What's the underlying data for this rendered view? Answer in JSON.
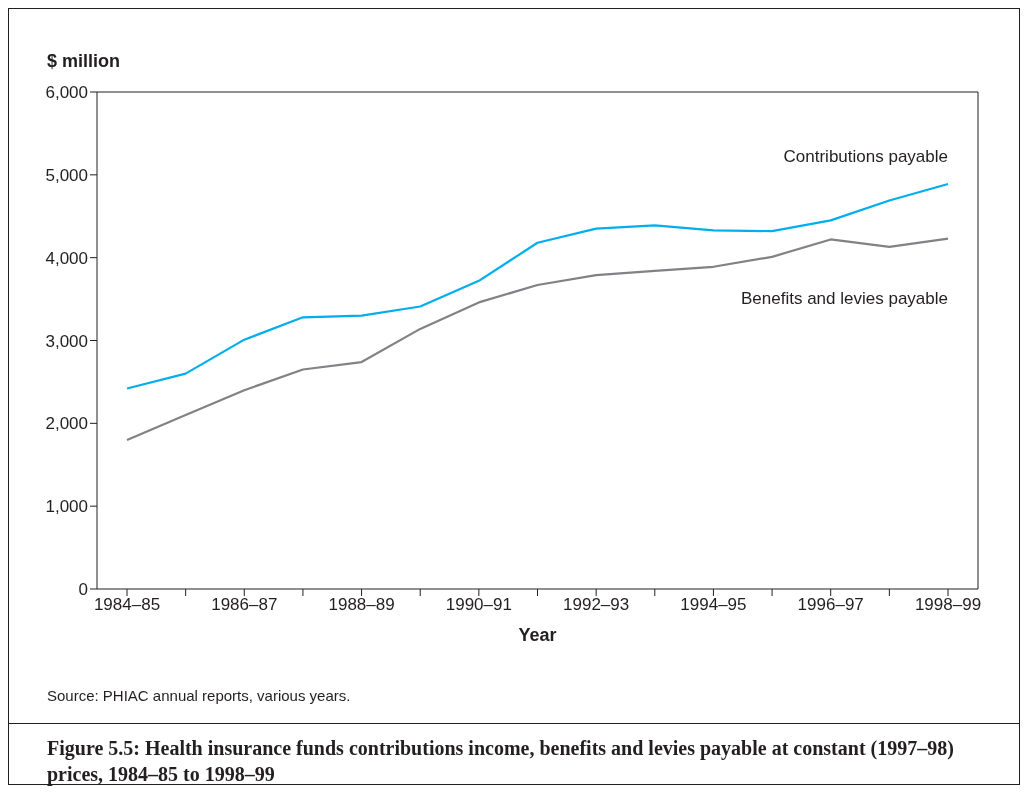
{
  "chart_data": {
    "type": "line",
    "title": "Figure 5.5: Health insurance funds contributions income, benefits and levies payable at constant (1997–98) prices, 1984–85 to 1998–99",
    "xlabel": "Year",
    "ylabel": "$ million",
    "categories": [
      "1984–85",
      null,
      "1986–87",
      null,
      "1988–89",
      null,
      "1990–91",
      null,
      "1992–93",
      null,
      "1994–95",
      null,
      "1996–97",
      null,
      "1998–99"
    ],
    "series": [
      {
        "name": "Contributions payable",
        "color": "#00aeef",
        "values": [
          2420,
          2600,
          3010,
          3280,
          3300,
          3410,
          3720,
          4180,
          4350,
          4390,
          4330,
          4320,
          4450,
          4690,
          4890
        ]
      },
      {
        "name": "Benefits and levies payable",
        "color": "#808285",
        "values": [
          1800,
          2100,
          2400,
          2650,
          2740,
          3140,
          3460,
          3670,
          3790,
          3840,
          3890,
          4010,
          4220,
          4130,
          4230
        ]
      }
    ],
    "ylim": [
      0,
      6000
    ],
    "yticks": [
      {
        "value": 0,
        "label": "0"
      },
      {
        "value": 1000,
        "label": "1,000"
      },
      {
        "value": 2000,
        "label": "2,000"
      },
      {
        "value": 3000,
        "label": "3,000"
      },
      {
        "value": 4000,
        "label": "4,000"
      },
      {
        "value": 5000,
        "label": "5,000"
      },
      {
        "value": 6000,
        "label": "6,000"
      }
    ],
    "grid": false,
    "marker": "none",
    "line_style": "solid",
    "annotations": [
      "Source: PHIAC annual reports, various years."
    ]
  }
}
